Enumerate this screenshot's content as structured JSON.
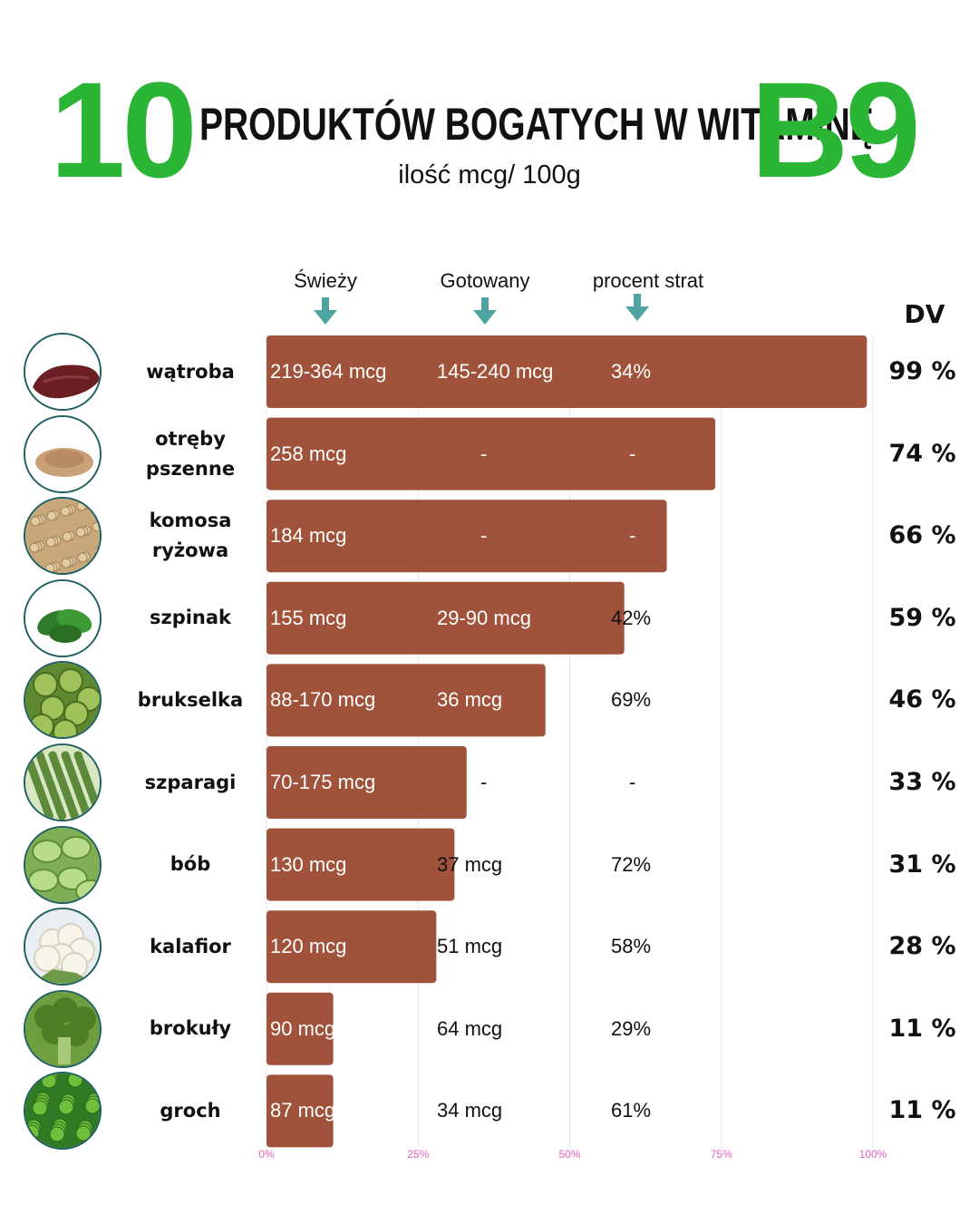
{
  "header": {
    "number": "10",
    "title": "PRODUKTÓW BOGATYCH W WITAMINĘ",
    "vitamin": "B9",
    "subtitle": "ilość mcg/ 100g"
  },
  "columns": {
    "fresh": "Świeży",
    "cooked": "Gotowany",
    "loss": "procent strat",
    "dv": "DV"
  },
  "colors": {
    "accent": "#2bb534",
    "bar": "#a0533a",
    "arrow": "#4fa3a0",
    "tick": "#e55fbf",
    "border": "#1f5f5f"
  },
  "chart_data": {
    "type": "bar",
    "orientation": "horizontal",
    "categories": [
      "wątroba",
      "otręby pszenne",
      "komosa ryżowa",
      "szpinak",
      "brukselka",
      "szparagi",
      "bób",
      "kalafior",
      "brokuły",
      "groch"
    ],
    "values": [
      99,
      74,
      66,
      59,
      46,
      33,
      31,
      28,
      11,
      11
    ],
    "xlim": [
      0,
      100
    ],
    "ticks": [
      "0%",
      "25%",
      "50%",
      "75%",
      "100%"
    ],
    "grid": true,
    "rows": [
      {
        "label": [
          "wątroba"
        ],
        "fresh": "219-364 mcg",
        "cooked": "145-240 mcg",
        "loss": "34%",
        "dv": "99 %",
        "icon": "liver-icon"
      },
      {
        "label": [
          "otręby",
          "pszenne"
        ],
        "fresh": "258 mcg",
        "cooked": "-",
        "loss": "-",
        "dv": "74 %",
        "icon": "wheat-bran-icon"
      },
      {
        "label": [
          "komosa",
          "ryżowa"
        ],
        "fresh": "184 mcg",
        "cooked": "-",
        "loss": "-",
        "dv": "66 %",
        "icon": "quinoa-icon"
      },
      {
        "label": [
          "szpinak"
        ],
        "fresh": "155 mcg",
        "cooked": "29-90 mcg",
        "loss": "42%",
        "dv": "59 %",
        "icon": "spinach-icon"
      },
      {
        "label": [
          "brukselka"
        ],
        "fresh": "88-170 mcg",
        "cooked": "36 mcg",
        "loss": "69%",
        "dv": "46 %",
        "icon": "brussels-sprouts-icon"
      },
      {
        "label": [
          "szparagi"
        ],
        "fresh": "70-175 mcg",
        "cooked": "-",
        "loss": "-",
        "dv": "33 %",
        "icon": "asparagus-icon"
      },
      {
        "label": [
          "bób"
        ],
        "fresh": "130 mcg",
        "cooked": "37 mcg",
        "loss": "72%",
        "dv": "31 %",
        "icon": "broad-beans-icon"
      },
      {
        "label": [
          "kalafior"
        ],
        "fresh": "120 mcg",
        "cooked": "51 mcg",
        "loss": "58%",
        "dv": "28 %",
        "icon": "cauliflower-icon"
      },
      {
        "label": [
          "brokuły"
        ],
        "fresh": "90 mcg",
        "cooked": "64 mcg",
        "loss": "29%",
        "dv": "11 %",
        "icon": "broccoli-icon"
      },
      {
        "label": [
          "groch"
        ],
        "fresh": "87 mcg",
        "cooked": "34 mcg",
        "loss": "61%",
        "dv": "11 %",
        "icon": "peas-icon"
      }
    ]
  }
}
